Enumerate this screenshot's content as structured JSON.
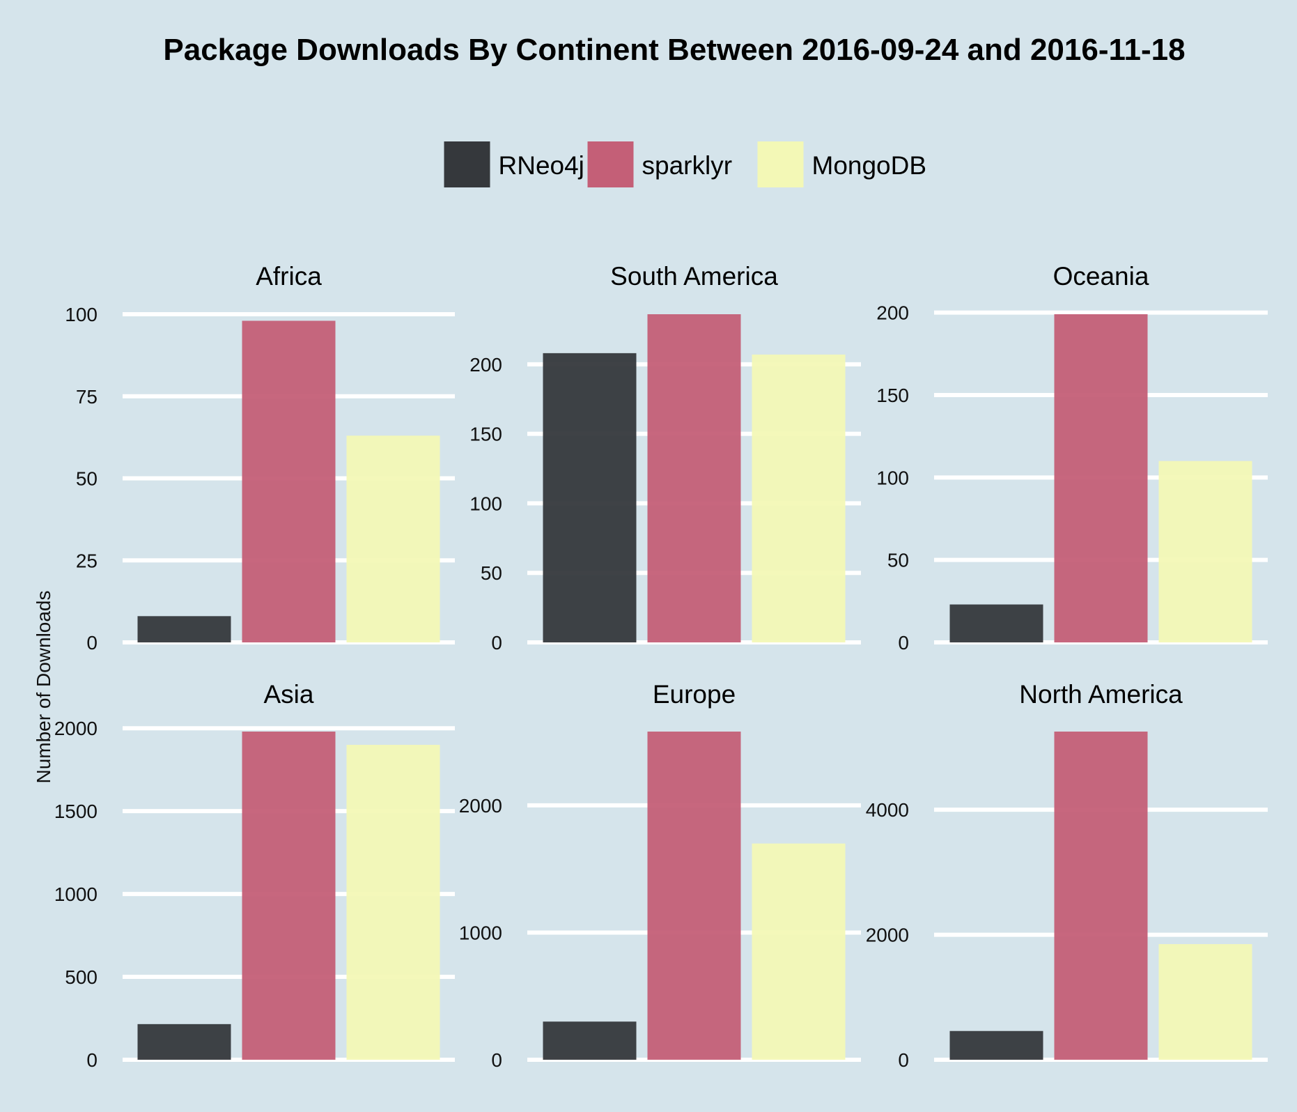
{
  "chart_data": {
    "type": "bar",
    "title": "Package Downloads By Continent Between 2016-09-24 and 2016-11-18",
    "ylabel": "Number of Downloads",
    "xlabel": "",
    "legend": {
      "position": "top",
      "entries": [
        "RNeo4j",
        "sparklyr",
        "MongoDB"
      ]
    },
    "series_colors": {
      "RNeo4j": "#35383c",
      "sparklyr": "#c45f77",
      "MongoDB": "#f3f8b6"
    },
    "grid": true,
    "facets": [
      {
        "name": "Africa",
        "values": {
          "RNeo4j": 8,
          "sparklyr": 98,
          "MongoDB": 63
        },
        "ylim": [
          0,
          100
        ],
        "ticks": [
          0,
          25,
          50,
          75,
          100
        ]
      },
      {
        "name": "South America",
        "values": {
          "RNeo4j": 208,
          "sparklyr": 236,
          "MongoDB": 207
        },
        "ylim": [
          0,
          236
        ],
        "ticks": [
          0,
          50,
          100,
          150,
          200
        ]
      },
      {
        "name": "Oceania",
        "values": {
          "RNeo4j": 23,
          "sparklyr": 199,
          "MongoDB": 110
        },
        "ylim": [
          0,
          199
        ],
        "ticks": [
          0,
          50,
          100,
          150,
          200
        ]
      },
      {
        "name": "Asia",
        "values": {
          "RNeo4j": 215,
          "sparklyr": 1980,
          "MongoDB": 1900
        },
        "ylim": [
          0,
          1980
        ],
        "ticks": [
          0,
          500,
          1000,
          1500,
          2000
        ]
      },
      {
        "name": "Europe",
        "values": {
          "RNeo4j": 300,
          "sparklyr": 2580,
          "MongoDB": 1700
        },
        "ylim": [
          0,
          2580
        ],
        "ticks": [
          0,
          1000,
          2000
        ]
      },
      {
        "name": "North America",
        "values": {
          "RNeo4j": 460,
          "sparklyr": 5250,
          "MongoDB": 1850
        },
        "ylim": [
          0,
          5250
        ],
        "ticks": [
          0,
          2000,
          4000
        ]
      }
    ]
  }
}
